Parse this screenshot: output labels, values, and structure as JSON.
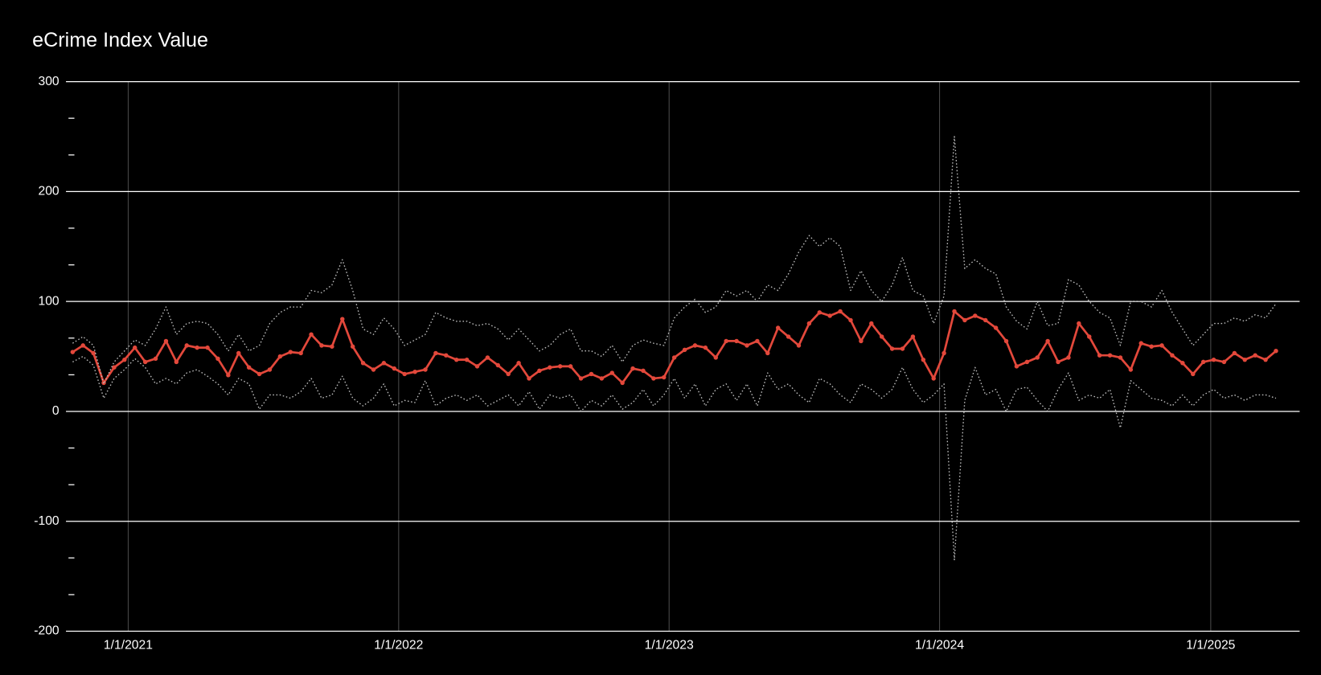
{
  "chart_data": {
    "type": "line",
    "title": "eCrime Index Value",
    "x": [
      "2020-10-18",
      "2020-11-01",
      "2020-11-15",
      "2020-11-29",
      "2020-12-13",
      "2020-12-27",
      "2021-01-10",
      "2021-01-24",
      "2021-02-07",
      "2021-02-21",
      "2021-03-07",
      "2021-03-21",
      "2021-04-04",
      "2021-04-18",
      "2021-05-02",
      "2021-05-16",
      "2021-05-30",
      "2021-06-13",
      "2021-06-27",
      "2021-07-11",
      "2021-07-25",
      "2021-08-08",
      "2021-08-22",
      "2021-09-05",
      "2021-09-19",
      "2021-10-03",
      "2021-10-17",
      "2021-10-31",
      "2021-11-14",
      "2021-11-28",
      "2021-12-12",
      "2021-12-26",
      "2022-01-09",
      "2022-01-23",
      "2022-02-06",
      "2022-02-20",
      "2022-03-06",
      "2022-03-20",
      "2022-04-03",
      "2022-04-17",
      "2022-05-01",
      "2022-05-15",
      "2022-05-29",
      "2022-06-12",
      "2022-06-26",
      "2022-07-10",
      "2022-07-24",
      "2022-08-07",
      "2022-08-21",
      "2022-09-04",
      "2022-09-18",
      "2022-10-02",
      "2022-10-16",
      "2022-10-30",
      "2022-11-13",
      "2022-11-27",
      "2022-12-11",
      "2022-12-25",
      "2023-01-08",
      "2023-01-22",
      "2023-02-05",
      "2023-02-19",
      "2023-03-05",
      "2023-03-19",
      "2023-04-02",
      "2023-04-16",
      "2023-04-30",
      "2023-05-14",
      "2023-05-28",
      "2023-06-11",
      "2023-06-25",
      "2023-07-09",
      "2023-07-23",
      "2023-08-06",
      "2023-08-20",
      "2023-09-03",
      "2023-09-17",
      "2023-10-01",
      "2023-10-15",
      "2023-10-29",
      "2023-11-12",
      "2023-11-26",
      "2023-12-10",
      "2023-12-24",
      "2024-01-07",
      "2024-01-21",
      "2024-02-04",
      "2024-02-18",
      "2024-03-03",
      "2024-03-17",
      "2024-03-31",
      "2024-04-14",
      "2024-04-28",
      "2024-05-12",
      "2024-05-26",
      "2024-06-09",
      "2024-06-23",
      "2024-07-07",
      "2024-07-21",
      "2024-08-04",
      "2024-08-18",
      "2024-09-01",
      "2024-09-15",
      "2024-09-29",
      "2024-10-13",
      "2024-10-27",
      "2024-11-10",
      "2024-11-24",
      "2024-12-08",
      "2024-12-22",
      "2025-01-05",
      "2025-01-19",
      "2025-02-02",
      "2025-02-16",
      "2025-03-02",
      "2025-03-16",
      "2025-03-30"
    ],
    "series": [
      {
        "color": "#e3483b",
        "style": "solid",
        "markers": true,
        "values": [
          54,
          60,
          53,
          26,
          40,
          47,
          58,
          45,
          48,
          64,
          45,
          60,
          58,
          58,
          48,
          33,
          53,
          40,
          34,
          38,
          50,
          54,
          53,
          70,
          60,
          59,
          84,
          59,
          44,
          38,
          44,
          39,
          34,
          36,
          38,
          53,
          51,
          47,
          47,
          41,
          49,
          42,
          34,
          44,
          30,
          37,
          40,
          41,
          41,
          30,
          34,
          30,
          35,
          26,
          39,
          37,
          30,
          31,
          49,
          56,
          60,
          58,
          49,
          64,
          64,
          60,
          64,
          53,
          76,
          68,
          60,
          80,
          90,
          87,
          91,
          83,
          64,
          80,
          68,
          57,
          57,
          68,
          47,
          30,
          53,
          91,
          83,
          87,
          83,
          76,
          64,
          41,
          45,
          49,
          64,
          45,
          49,
          80,
          68,
          51,
          51,
          49,
          38,
          62,
          59,
          60,
          51,
          44,
          34,
          45,
          47,
          45,
          53,
          47,
          51,
          47,
          55
        ]
      },
      {
        "color": "#bdbdbd",
        "style": "dotted",
        "markers": false,
        "values": [
          62,
          68,
          60,
          25,
          45,
          55,
          65,
          60,
          75,
          95,
          70,
          80,
          82,
          80,
          70,
          55,
          70,
          55,
          60,
          80,
          90,
          95,
          95,
          110,
          108,
          115,
          138,
          110,
          75,
          70,
          85,
          75,
          60,
          65,
          70,
          90,
          85,
          82,
          82,
          78,
          80,
          75,
          65,
          75,
          65,
          55,
          60,
          70,
          75,
          55,
          55,
          50,
          60,
          45,
          60,
          65,
          62,
          60,
          85,
          95,
          102,
          90,
          95,
          110,
          105,
          110,
          100,
          115,
          110,
          125,
          145,
          160,
          150,
          158,
          150,
          110,
          128,
          110,
          100,
          115,
          140,
          110,
          105,
          80,
          105,
          250,
          130,
          138,
          130,
          125,
          95,
          82,
          75,
          100,
          78,
          80,
          120,
          115,
          100,
          90,
          85,
          60,
          100,
          100,
          95,
          110,
          90,
          75,
          60,
          70,
          80,
          80,
          85,
          82,
          88,
          85,
          98
        ]
      },
      {
        "color": "#bdbdbd",
        "style": "dotted",
        "markers": false,
        "values": [
          45,
          50,
          42,
          12,
          30,
          38,
          48,
          40,
          25,
          30,
          25,
          35,
          38,
          32,
          25,
          15,
          30,
          25,
          2,
          15,
          15,
          12,
          18,
          30,
          12,
          15,
          32,
          12,
          5,
          12,
          25,
          5,
          10,
          8,
          28,
          5,
          12,
          15,
          10,
          15,
          5,
          10,
          15,
          5,
          18,
          2,
          15,
          12,
          15,
          0,
          10,
          5,
          15,
          2,
          8,
          20,
          5,
          15,
          30,
          12,
          25,
          5,
          20,
          25,
          10,
          25,
          5,
          35,
          20,
          25,
          15,
          8,
          30,
          25,
          15,
          8,
          25,
          20,
          12,
          20,
          40,
          20,
          8,
          15,
          25,
          -135,
          10,
          40,
          15,
          20,
          0,
          20,
          22,
          10,
          0,
          20,
          35,
          10,
          15,
          12,
          20,
          -15,
          28,
          20,
          12,
          10,
          5,
          15,
          5,
          15,
          20,
          12,
          15,
          10,
          15,
          15,
          12
        ]
      }
    ],
    "xlim": [
      "2020-10-09",
      "2025-05-01"
    ],
    "xticks": [
      {
        "value": "2021-01-01",
        "label": "1/1/2021"
      },
      {
        "value": "2022-01-01",
        "label": "1/1/2022"
      },
      {
        "value": "2023-01-01",
        "label": "1/1/2023"
      },
      {
        "value": "2024-01-01",
        "label": "1/1/2024"
      },
      {
        "value": "2025-01-01",
        "label": "1/1/2025"
      }
    ],
    "ylim": [
      -200,
      300
    ],
    "yticks": [
      -200,
      -100,
      0,
      100,
      200,
      300
    ],
    "y_minor_ticks": [
      -166.7,
      -133.3,
      -66.7,
      -33.3,
      33.3,
      66.7,
      133.3,
      166.7,
      233.3,
      266.7
    ],
    "grid": true
  }
}
